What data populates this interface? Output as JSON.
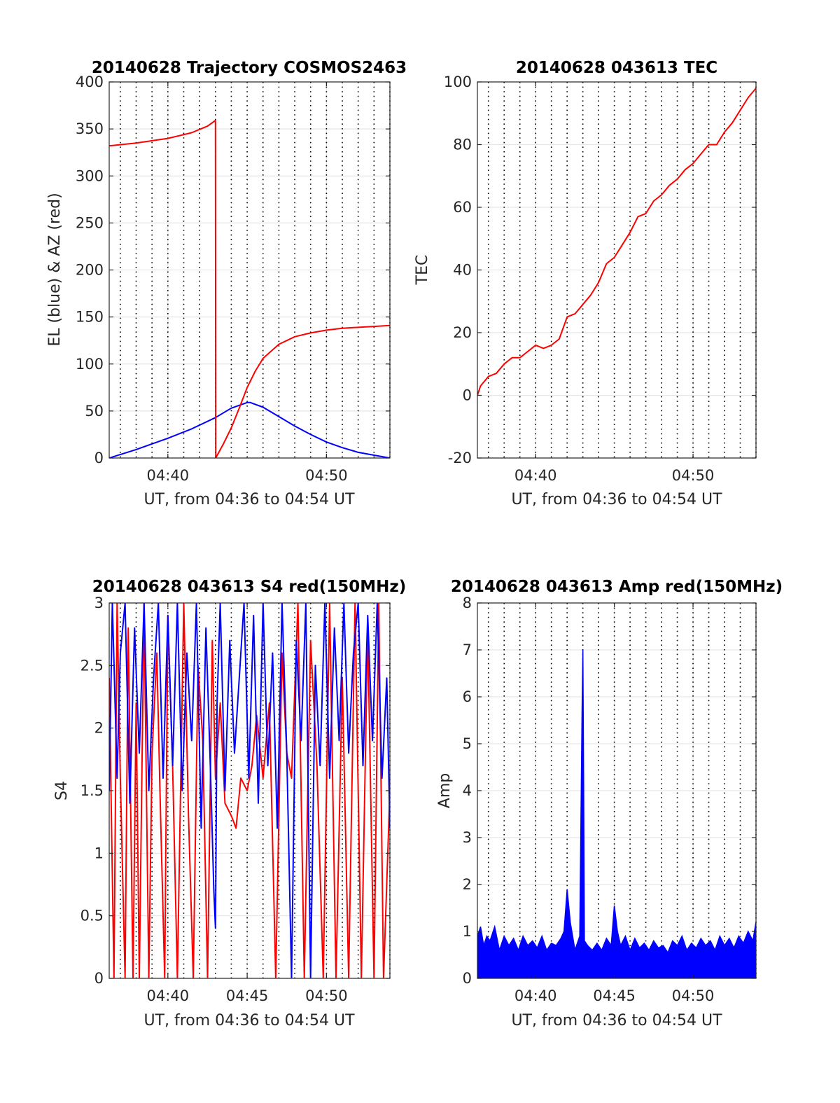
{
  "figure": {
    "background": "#ffffff",
    "grid_color": "#e6e6e6",
    "minute_line_color": "#000000"
  },
  "chart_data": [
    {
      "type": "line",
      "title": "20140628 Trajectory COSMOS2463",
      "xlabel": "UT, from 04:36 to 04:54 UT",
      "ylabel": "EL (blue) & AZ (red)",
      "x_unit": "minutes after 04:36 UT",
      "xlim": [
        0.3,
        18
      ],
      "ylim": [
        0,
        400
      ],
      "grid": true,
      "minute_gridlines": true,
      "x_ticks": [
        4,
        14
      ],
      "x_tick_labels": [
        "04:40",
        "04:50"
      ],
      "y_ticks": [
        0,
        50,
        100,
        150,
        200,
        250,
        300,
        350,
        400
      ],
      "y_tick_labels": [
        "0",
        "50",
        "100",
        "150",
        "200",
        "250",
        "300",
        "350",
        "400"
      ],
      "series": [
        {
          "color": "#0000ff",
          "x": [
            0.3,
            2,
            4,
            5.5,
            7,
            8,
            9,
            9.2,
            10,
            11,
            12,
            13,
            14,
            15,
            16,
            17,
            18
          ],
          "y": [
            0,
            9,
            21,
            31,
            43,
            53,
            59,
            59,
            54,
            44,
            34,
            25,
            17,
            11,
            6,
            3,
            0
          ]
        },
        {
          "color": "#ff0000",
          "x": [
            0.3,
            2,
            4,
            5.5,
            6.5,
            7,
            7.02,
            7.5,
            8,
            8.5,
            9,
            9.5,
            10,
            11,
            12,
            13,
            14,
            15,
            16,
            17,
            18
          ],
          "y": [
            332,
            335,
            340,
            346,
            353,
            359,
            0,
            15,
            32,
            53,
            75,
            92,
            106,
            121,
            129,
            133,
            136,
            138,
            139,
            140,
            141
          ]
        }
      ]
    },
    {
      "type": "line",
      "title": "20140628 043613 TEC",
      "xlabel": "UT, from 04:36 to 04:54 UT",
      "ylabel": "TEC",
      "x_unit": "minutes after 04:36 UT",
      "xlim": [
        0.3,
        18
      ],
      "ylim": [
        -20,
        100
      ],
      "grid": true,
      "minute_gridlines": true,
      "x_ticks": [
        4,
        14
      ],
      "x_tick_labels": [
        "04:40",
        "04:50"
      ],
      "y_ticks": [
        -20,
        0,
        20,
        40,
        60,
        80,
        100
      ],
      "y_tick_labels": [
        "-20",
        "0",
        "20",
        "40",
        "60",
        "80",
        "100"
      ],
      "series": [
        {
          "color": "#ff0000",
          "x": [
            0.3,
            0.5,
            1,
            1.5,
            2,
            2.5,
            3,
            3.5,
            4,
            4.5,
            5,
            5.5,
            6,
            6.5,
            7,
            7.5,
            8,
            8.5,
            9,
            9.5,
            10,
            10.5,
            11,
            11.5,
            12,
            12.5,
            13,
            13.5,
            14,
            14.5,
            15,
            15.5,
            16,
            16.5,
            17,
            17.5,
            18
          ],
          "y": [
            0,
            3,
            6,
            7,
            10,
            12,
            12,
            14,
            16,
            15,
            16,
            18,
            25,
            26,
            29,
            32,
            36,
            42,
            44,
            48,
            52,
            57,
            58,
            62,
            64,
            67,
            69,
            72,
            74,
            77,
            80,
            80,
            84,
            87,
            91,
            95,
            98
          ]
        }
      ]
    },
    {
      "type": "line",
      "title": "20140628 043613 S4 red(150MHz)",
      "xlabel": "UT, from 04:36 to 04:54 UT",
      "ylabel": "S4",
      "x_unit": "minutes after 04:36 UT",
      "xlim": [
        0.3,
        18
      ],
      "ylim": [
        0,
        3
      ],
      "grid": true,
      "minute_gridlines": true,
      "x_ticks": [
        4,
        9,
        14
      ],
      "x_tick_labels": [
        "04:40",
        "04:45",
        "04:50"
      ],
      "y_ticks": [
        0,
        0.5,
        1,
        1.5,
        2,
        2.5,
        3
      ],
      "y_tick_labels": [
        "0",
        "0.5",
        "1",
        "1.5",
        "2",
        "2.5",
        "3"
      ],
      "series": [
        {
          "color": "#ff0000",
          "x": [
            0.3,
            0.6,
            0.8,
            1.0,
            1.3,
            1.5,
            1.8,
            2.0,
            2.2,
            2.5,
            2.8,
            3.0,
            3.3,
            3.5,
            3.8,
            4.0,
            4.3,
            4.6,
            5.0,
            5.3,
            5.6,
            5.9,
            6.2,
            6.5,
            6.8,
            7.0,
            7.3,
            7.6,
            8.0,
            8.3,
            8.6,
            9.0,
            9.3,
            9.6,
            10.0,
            10.4,
            10.8,
            11.2,
            11.5,
            11.8,
            12.2,
            12.6,
            13.0,
            13.4,
            13.8,
            14.2,
            14.6,
            15.0,
            15.4,
            15.8,
            16.2,
            16.6,
            17.0,
            17.3,
            17.6,
            18.0
          ],
          "y": [
            2.4,
            0.0,
            3.0,
            1.6,
            0.0,
            2.8,
            0.0,
            2.2,
            0.0,
            3.0,
            0.0,
            1.8,
            2.6,
            1.5,
            0.0,
            2.9,
            1.7,
            0.0,
            3.0,
            1.3,
            0.0,
            2.5,
            1.9,
            0.0,
            2.7,
            1.6,
            2.2,
            1.4,
            1.3,
            1.2,
            1.6,
            1.5,
            1.7,
            2.1,
            1.6,
            2.2,
            0.0,
            2.6,
            1.8,
            1.6,
            3.0,
            0.0,
            2.7,
            1.7,
            0.0,
            3.0,
            0.0,
            2.4,
            0.0,
            3.0,
            0.0,
            2.8,
            0.0,
            3.0,
            0.0,
            1.5
          ]
        },
        {
          "color": "#0000ff",
          "x": [
            0.3,
            0.5,
            0.8,
            1.0,
            1.3,
            1.6,
            1.9,
            2.2,
            2.5,
            2.8,
            3.1,
            3.4,
            3.7,
            4.0,
            4.3,
            4.6,
            4.9,
            5.2,
            5.5,
            5.8,
            6.1,
            6.4,
            6.7,
            6.9,
            7.0,
            7.1,
            7.3,
            7.6,
            7.9,
            8.2,
            8.5,
            8.8,
            9.1,
            9.4,
            9.7,
            10.0,
            10.3,
            10.6,
            10.9,
            11.2,
            11.5,
            11.8,
            12.1,
            12.4,
            12.7,
            13.0,
            13.3,
            13.6,
            13.9,
            14.2,
            14.5,
            14.8,
            15.1,
            15.4,
            15.7,
            16.0,
            16.3,
            16.6,
            16.9,
            17.2,
            17.5,
            17.8,
            18.0
          ],
          "y": [
            1.5,
            3.0,
            1.6,
            2.6,
            3.0,
            1.4,
            2.8,
            1.8,
            3.0,
            1.5,
            2.4,
            3.0,
            1.6,
            2.9,
            1.7,
            3.0,
            1.5,
            2.6,
            1.9,
            3.0,
            1.2,
            2.8,
            1.6,
            0.7,
            0.4,
            2.2,
            3.0,
            1.5,
            2.7,
            1.8,
            2.4,
            3.0,
            1.6,
            2.9,
            1.4,
            3.0,
            1.7,
            2.6,
            1.2,
            3.0,
            1.8,
            0.0,
            2.7,
            1.9,
            3.0,
            0.0,
            2.5,
            1.7,
            3.0,
            1.6,
            2.8,
            1.9,
            3.0,
            1.8,
            2.6,
            3.0,
            1.7,
            2.9,
            1.9,
            3.0,
            1.6,
            2.4,
            1.2
          ]
        }
      ]
    },
    {
      "type": "line",
      "title": "20140628 043613 Amp red(150MHz)",
      "xlabel": "UT, from 04:36 to 04:54 UT",
      "ylabel": "Amp",
      "x_unit": "minutes after 04:36 UT",
      "xlim": [
        0.3,
        18
      ],
      "ylim": [
        0,
        8
      ],
      "grid": true,
      "minute_gridlines": true,
      "x_ticks": [
        4,
        9,
        14
      ],
      "x_tick_labels": [
        "04:40",
        "04:45",
        "04:50"
      ],
      "y_ticks": [
        0,
        1,
        2,
        3,
        4,
        5,
        6,
        7,
        8
      ],
      "y_tick_labels": [
        "0",
        "1",
        "2",
        "3",
        "4",
        "5",
        "6",
        "7",
        "8"
      ],
      "series": [
        {
          "color": "#0000ff",
          "fill_to_zero": true,
          "x": [
            0.3,
            0.5,
            0.7,
            0.9,
            1.1,
            1.4,
            1.7,
            2.0,
            2.3,
            2.6,
            2.9,
            3.2,
            3.5,
            3.8,
            4.1,
            4.4,
            4.7,
            5.0,
            5.3,
            5.6,
            5.8,
            6.0,
            6.2,
            6.5,
            6.8,
            6.95,
            7.0,
            7.05,
            7.1,
            7.3,
            7.6,
            7.9,
            8.2,
            8.5,
            8.8,
            9.0,
            9.2,
            9.4,
            9.7,
            10.0,
            10.3,
            10.6,
            10.9,
            11.2,
            11.5,
            11.8,
            12.1,
            12.4,
            12.7,
            13.0,
            13.3,
            13.6,
            13.9,
            14.2,
            14.5,
            14.8,
            15.1,
            15.4,
            15.7,
            16.0,
            16.3,
            16.6,
            16.9,
            17.2,
            17.5,
            17.8,
            18.0
          ],
          "y": [
            0.9,
            1.1,
            0.7,
            0.9,
            0.8,
            1.1,
            0.6,
            0.9,
            0.7,
            0.85,
            0.6,
            0.9,
            0.7,
            0.8,
            0.65,
            0.9,
            0.6,
            0.75,
            0.7,
            0.85,
            1.0,
            1.9,
            1.2,
            0.6,
            0.9,
            5.7,
            7.0,
            4.2,
            0.8,
            0.7,
            0.6,
            0.75,
            0.6,
            0.85,
            0.7,
            1.55,
            1.0,
            0.7,
            0.9,
            0.6,
            0.85,
            0.65,
            0.75,
            0.6,
            0.8,
            0.65,
            0.7,
            0.55,
            0.8,
            0.7,
            0.9,
            0.6,
            0.75,
            0.65,
            0.85,
            0.7,
            0.8,
            0.6,
            0.9,
            0.7,
            0.85,
            0.65,
            0.9,
            0.75,
            1.0,
            0.8,
            1.2
          ]
        }
      ]
    }
  ]
}
